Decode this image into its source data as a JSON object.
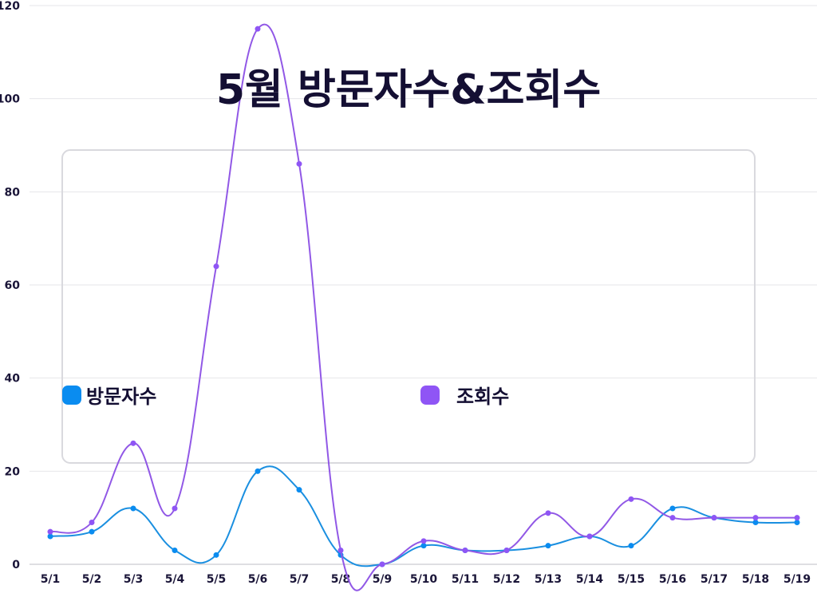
{
  "chart_data": {
    "type": "line",
    "title": "5월 방문자수&조회수",
    "categories": [
      "5/1",
      "5/2",
      "5/3",
      "5/4",
      "5/5",
      "5/6",
      "5/7",
      "5/8",
      "5/9",
      "5/10",
      "5/11",
      "5/12",
      "5/13",
      "5/14",
      "5/15",
      "5/16",
      "5/17",
      "5/18",
      "5/19"
    ],
    "ylim": [
      0,
      120
    ],
    "yticks": [
      "0",
      "20",
      "40",
      "60",
      "80",
      "100",
      "120"
    ],
    "grid": true,
    "legend_placement": "center",
    "series": [
      {
        "name": "방문자수",
        "color": "#1a8fe0",
        "marker_color": "#0a8cf0",
        "values": [
          6,
          7,
          12,
          3,
          2,
          20,
          16,
          2,
          0,
          4,
          3,
          3,
          4,
          6,
          4,
          12,
          10,
          9,
          9
        ]
      },
      {
        "name": "조회수",
        "color": "#9158e6",
        "marker_color": "#8f55f5",
        "values": [
          7,
          9,
          26,
          12,
          64,
          115,
          86,
          3,
          0,
          5,
          3,
          3,
          11,
          6,
          14,
          10,
          10,
          10,
          10
        ]
      }
    ]
  }
}
